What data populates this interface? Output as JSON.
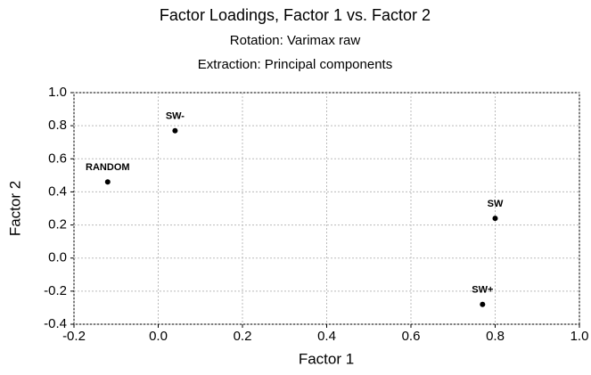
{
  "chart_data": {
    "type": "scatter",
    "title": "Factor Loadings, Factor 1 vs. Factor 2",
    "subtitles": [
      "Rotation: Varimax raw",
      "Extraction: Principal components"
    ],
    "x_label": "Factor 1",
    "y_label": "Factor 2",
    "labels": [
      "RANDOM",
      "SW-",
      "SW",
      "SW+"
    ],
    "x": [
      -0.12,
      0.04,
      0.8,
      0.77
    ],
    "values": [
      0.46,
      0.77,
      0.24,
      -0.28
    ],
    "color": "#000000",
    "xlim": [
      -0.2,
      1.0
    ],
    "ylim": [
      -0.4,
      1.0
    ],
    "xticks": [
      -0.2,
      0.0,
      0.2,
      0.4,
      0.6,
      0.8,
      1.0
    ],
    "yticks": [
      -0.4,
      -0.2,
      0.0,
      0.2,
      0.4,
      0.6,
      0.8,
      1.0
    ],
    "grid": true
  }
}
